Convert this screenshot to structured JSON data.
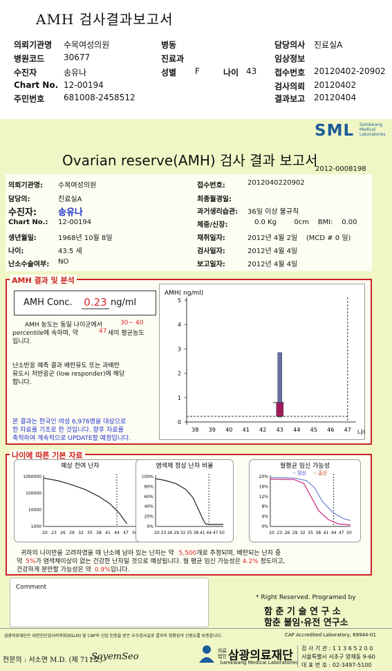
{
  "header": {
    "title": "AMH 검사결과보고서",
    "left": [
      {
        "label": "의뢰기관명",
        "value": "수목여성의원"
      },
      {
        "label": "병원코드",
        "value": "30677"
      },
      {
        "label": "수진자",
        "value": "송유나"
      },
      {
        "label": "Chart No.",
        "value": "12-00194"
      },
      {
        "label": "주민번호",
        "value": "681008-2458512"
      }
    ],
    "mid": [
      {
        "label": "병동",
        "value": ""
      },
      {
        "label": "진료과",
        "value": ""
      },
      {
        "label": "성별",
        "value": "F"
      }
    ],
    "age_label": "나이",
    "age_value": "43",
    "right": [
      {
        "label": "담당의사",
        "value": "진료실A"
      },
      {
        "label": "임상정보",
        "value": ""
      },
      {
        "label": "접수번호",
        "value": "20120402-20902"
      },
      {
        "label": "검사의뢰",
        "value": "20120402"
      },
      {
        "label": "결과보고",
        "value": "20120404"
      }
    ]
  },
  "logo": {
    "text": "SML",
    "sub1": "Samkwang",
    "sub2": "Medical",
    "sub3": "Laboratories"
  },
  "report": {
    "title": "Ovarian reserve(AMH) 검사 결과 보고서",
    "doc_no": "2012-0008198",
    "left": [
      {
        "label": "의뢰기관명:",
        "value": "수목여성의원"
      },
      {
        "label": "담당의:",
        "value": "진료실A"
      },
      {
        "label": "수진자:",
        "value": "송유나"
      },
      {
        "label": "Chart No.:",
        "value": "12-00194"
      },
      {
        "label": "생년월일:",
        "value": "1968년 10월 8일"
      },
      {
        "label": "나이:",
        "value": "43.5 세"
      },
      {
        "label": "난소수술여부:",
        "value": "NO"
      }
    ],
    "right": [
      {
        "label": "접수번호:",
        "value": "2012040220902"
      },
      {
        "label": "최종월경일:",
        "value": ""
      },
      {
        "label": "과거생리습관:",
        "value": "36일 이상 불규칙"
      },
      {
        "label": "체중/신장:",
        "value": "0.0 Kg        0cm    BMI:    0.00"
      },
      {
        "label": "채취일자:",
        "value": "2012년 4월 2일    (MCD # 0 일)"
      },
      {
        "label": "검사일자:",
        "value": "2012년 4월 4일"
      },
      {
        "label": "보고일자:",
        "value": "2012년 4월 4일"
      }
    ]
  },
  "analysis": {
    "section_label": "AMH 결과 및 분석",
    "conc_label": "AMH Conc.",
    "conc_value": "0.23",
    "conc_unit": "ng/ml",
    "p1a": "AMH 농도는 동일 나이군에서",
    "p1b": "30~ 40",
    "p1c": "percentile에 속하며, 약",
    "p1d": "47",
    "p1e": "세의 평균농도",
    "p1f": "입니다.",
    "p2a": "난소반응 예측 결과 배란유도 또는 과배란",
    "p2b": "유도시 저반응군 (low responder)에 해당",
    "p2c": "합니다.",
    "note1": "본 결과는 한국인 여성 6,976명을 대상으로",
    "note2": "한 자료를 기초로 한 것입니다. 향후 자료를",
    "note3": "축적하여 계속적으로 UPDATE할 예정입니다."
  },
  "chart_data": [
    {
      "type": "bar",
      "ylabel": "AMH( ng/ml)",
      "xlabel": "나이",
      "x": [
        38,
        39,
        40,
        41,
        42,
        43,
        44,
        45,
        46,
        47
      ],
      "ylim": [
        0,
        5
      ],
      "yticks": [
        0,
        1,
        2,
        3,
        4,
        5
      ],
      "range_bar": {
        "x": 43,
        "low": 0.2,
        "high": 2.85
      },
      "patient": {
        "x": 43,
        "value": 0.23
      },
      "mean_marker": {
        "x": 43,
        "value": 0.8
      },
      "reference_line_x": 47
    },
    {
      "type": "line",
      "title": "예상 잔여 난자",
      "scale": "log",
      "yticks": [
        "1000000",
        "100000",
        "10000",
        "1000"
      ],
      "xticks": [
        "20",
        "23",
        "26",
        "29",
        "32",
        "35",
        "38",
        "41",
        "44",
        "47",
        "50"
      ],
      "marker_x": 44
    },
    {
      "type": "line",
      "title": "염색체 정상 난자 비율",
      "yticks": [
        "100%",
        "80%",
        "60%",
        "40%",
        "20%",
        "0%"
      ],
      "xticks": [
        "20",
        "23",
        "26",
        "29",
        "32",
        "35",
        "38",
        "41",
        "44",
        "47",
        "50"
      ],
      "marker_x": 44
    },
    {
      "type": "line",
      "title": "월평균 임신 가능성",
      "legend": [
        "임신",
        "출산"
      ],
      "yticks": [
        "20%",
        "16%",
        "12%",
        "8%",
        "4%",
        "0%"
      ],
      "xticks": [
        "20",
        "23",
        "26",
        "29",
        "32",
        "35",
        "38",
        "41",
        "44",
        "47",
        "50"
      ],
      "marker_x": 44
    }
  ],
  "age_section": {
    "label": "나이에 따른 기본 자료",
    "t1a": "귀하의 나이만을 고려하였을 때 난소에 남아 있는 난자는 약",
    "t1b": "5,500",
    "t1c": "개로 추정되며, 배란되는 난자 중",
    "t2a": "약",
    "t2b": "5%",
    "t2c": "가 염색체이상이 없는 건강한 난자일 것으로 예상됩니다. 월 평균 임신 가능성은",
    "t2d": "4.2%",
    "t2e": "정도이고,",
    "t3a": "건강하게 분만할 가능성은 약",
    "t3b": "0.9%",
    "t3c": "입니다."
  },
  "footer": {
    "comment_label": "Comment",
    "rights": "* Right Reserved. Programed by",
    "org1": "함 춘 기 술 연 구 소",
    "org2": "함춘 불임·유전 연구소",
    "cert": "삼광의료재단은 대한진단검사의학회(KSLM) 및 CAP의 신임 인증을 받은 우수검사실로 결과의 정확성과 신뢰도를 보증합니다.",
    "cap": "CAP  Accredited  Laboratory,  69944-01",
    "specialist": "전문의 : 서소연 M.D. (제 711호)",
    "signature": "SoyemSeo",
    "foundation": "삼광의료재단",
    "foundation_en": "Samkwang Medical Laboratories",
    "foundation_tag": "의료법인",
    "addr1": "검 사 기 관 : 1 1 3 6 5 2 0 0",
    "addr2": "서울특별시 서초구 양재동 9-60",
    "addr3": "대 표 번 호 : 02-3497-5100"
  }
}
